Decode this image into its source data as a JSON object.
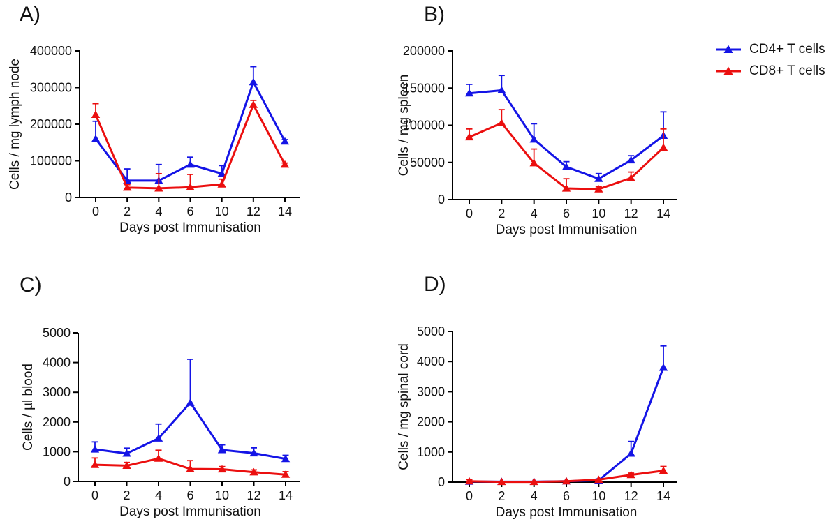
{
  "figure": {
    "panels": [
      "A)",
      "B)",
      "C)",
      "D)"
    ]
  },
  "legend": {
    "items": [
      {
        "label": "CD4+ T cells",
        "color": "#1414e6",
        "marker": "triangle-up-icon"
      },
      {
        "label": "CD8+ T cells",
        "color": "#eb0f0f",
        "marker": "triangle-up-icon"
      }
    ]
  },
  "chart_data": [
    {
      "type": "line",
      "panel_label": "A)",
      "xlabel": "Days post Immunisation",
      "ylabel": "Cells / mg lymph node",
      "categories": [
        "0",
        "2",
        "4",
        "6",
        "10",
        "12",
        "14"
      ],
      "ylim": [
        0,
        400000
      ],
      "yticks": [
        0,
        100000,
        200000,
        300000,
        400000
      ],
      "grid": false,
      "error_bars": "upper",
      "series": [
        {
          "name": "CD4+ T cells",
          "color": "#1414e6",
          "values": [
            160000,
            46000,
            46000,
            90000,
            65000,
            315000,
            153000
          ],
          "err_up": [
            48000,
            32000,
            44000,
            20000,
            22000,
            42000,
            5000
          ]
        },
        {
          "name": "CD8+ T cells",
          "color": "#eb0f0f",
          "values": [
            226000,
            27000,
            25000,
            28000,
            36000,
            253000,
            90000
          ],
          "err_up": [
            30000,
            8000,
            40000,
            35000,
            14000,
            12000,
            4000
          ]
        }
      ]
    },
    {
      "type": "line",
      "panel_label": "B)",
      "xlabel": "Days post Immunisation",
      "ylabel": "Cells / mg spleen",
      "categories": [
        "0",
        "2",
        "4",
        "6",
        "10",
        "12",
        "14"
      ],
      "ylim": [
        0,
        200000
      ],
      "yticks": [
        0,
        50000,
        100000,
        150000,
        200000
      ],
      "grid": false,
      "error_bars": "upper",
      "legend_position": "top-right-outside",
      "series": [
        {
          "name": "CD4+ T cells",
          "color": "#1414e6",
          "values": [
            143000,
            147000,
            81000,
            44000,
            28000,
            53000,
            86000
          ],
          "err_up": [
            12000,
            20000,
            21000,
            7000,
            7000,
            6000,
            32000
          ]
        },
        {
          "name": "CD8+ T cells",
          "color": "#eb0f0f",
          "values": [
            84000,
            103000,
            49000,
            15000,
            14000,
            29000,
            70000
          ],
          "err_up": [
            11000,
            18000,
            19000,
            13000,
            3000,
            8000,
            25000
          ]
        }
      ]
    },
    {
      "type": "line",
      "panel_label": "C)",
      "xlabel": "Days post Immunisation",
      "ylabel": "Cells / µl blood",
      "categories": [
        "0",
        "2",
        "4",
        "6",
        "10",
        "12",
        "14"
      ],
      "ylim": [
        0,
        5000
      ],
      "yticks": [
        0,
        1000,
        2000,
        3000,
        4000,
        5000
      ],
      "grid": false,
      "error_bars": "upper",
      "series": [
        {
          "name": "CD4+ T cells",
          "color": "#1414e6",
          "values": [
            1080,
            940,
            1450,
            2650,
            1060,
            950,
            760
          ],
          "err_up": [
            250,
            180,
            480,
            1460,
            170,
            180,
            120
          ]
        },
        {
          "name": "CD8+ T cells",
          "color": "#eb0f0f",
          "values": [
            560,
            530,
            770,
            420,
            410,
            310,
            230
          ],
          "err_up": [
            230,
            110,
            280,
            280,
            90,
            80,
            100
          ]
        }
      ]
    },
    {
      "type": "line",
      "panel_label": "D)",
      "xlabel": "Days post Immunisation",
      "ylabel": "Cells / mg spinal cord",
      "categories": [
        "0",
        "2",
        "4",
        "6",
        "10",
        "12",
        "14"
      ],
      "ylim": [
        0,
        5000
      ],
      "yticks": [
        0,
        1000,
        2000,
        3000,
        4000,
        5000
      ],
      "grid": false,
      "error_bars": "upper",
      "series": [
        {
          "name": "CD4+ T cells",
          "color": "#1414e6",
          "values": [
            20,
            15,
            15,
            30,
            60,
            950,
            3800
          ],
          "err_up": [
            0,
            0,
            0,
            0,
            50,
            400,
            720
          ]
        },
        {
          "name": "CD8+ T cells",
          "color": "#eb0f0f",
          "values": [
            30,
            10,
            10,
            30,
            80,
            240,
            380
          ],
          "err_up": [
            50,
            0,
            0,
            0,
            0,
            60,
            140
          ]
        }
      ]
    }
  ]
}
